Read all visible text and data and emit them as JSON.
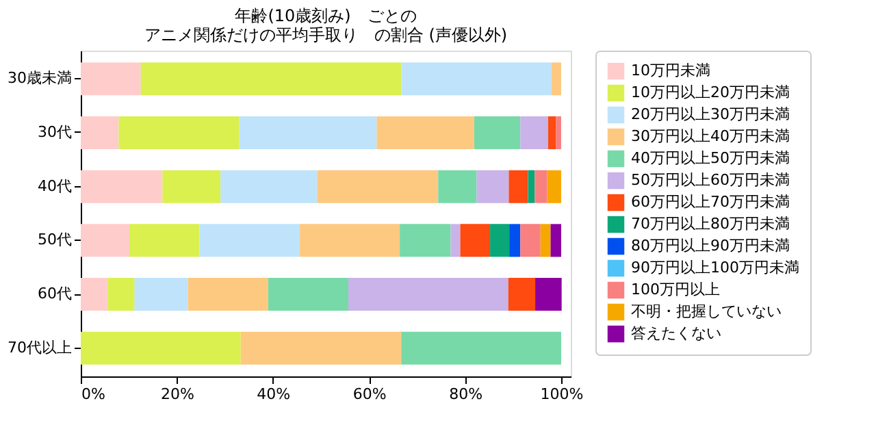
{
  "chart_data": {
    "type": "bar",
    "orientation": "horizontal",
    "stacked": true,
    "title": [
      "年齢(10歳刻み)　ごとの",
      "アニメ関係だけの平均手取り　の割合 (声優以外)"
    ],
    "categories": [
      "30歳未満",
      "30代",
      "40代",
      "50代",
      "60代",
      "70代以上"
    ],
    "xlim": [
      0,
      102
    ],
    "xticks": [
      {
        "value": 0,
        "label": "0%"
      },
      {
        "value": 20,
        "label": "20%"
      },
      {
        "value": 40,
        "label": "40%"
      },
      {
        "value": 60,
        "label": "60%"
      },
      {
        "value": 80,
        "label": "80%"
      },
      {
        "value": 100,
        "label": "100%"
      }
    ],
    "grid": false,
    "legend": "right",
    "series": [
      {
        "name": "10万円未満",
        "color": "#ffcccc",
        "values": [
          12.5,
          7.9,
          17.0,
          10.1,
          5.6,
          0
        ]
      },
      {
        "name": "10万円以上20万円未満",
        "color": "#d9f04f",
        "values": [
          54.2,
          25.1,
          12.1,
          14.6,
          5.6,
          33.3
        ]
      },
      {
        "name": "20万円以上30万円未満",
        "color": "#bfe3fb",
        "values": [
          31.3,
          28.6,
          20.1,
          20.9,
          11.1,
          0
        ]
      },
      {
        "name": "30万円以上40万円未満",
        "color": "#fdc981",
        "values": [
          2.0,
          20.3,
          25.2,
          20.8,
          16.7,
          33.4
        ]
      },
      {
        "name": "40万円以上50万円未満",
        "color": "#78d9a8",
        "values": [
          0,
          9.6,
          8.0,
          10.6,
          16.7,
          33.3
        ]
      },
      {
        "name": "50万円以上60万円未満",
        "color": "#c9b3e8",
        "values": [
          0,
          5.8,
          6.7,
          2.0,
          33.3,
          0
        ]
      },
      {
        "name": "60万円以上70万円未満",
        "color": "#ff4a10",
        "values": [
          0,
          1.6,
          4.0,
          6.2,
          5.6,
          0
        ]
      },
      {
        "name": "70万円以上80万円未満",
        "color": "#0aa878",
        "values": [
          0,
          0,
          1.4,
          4.0,
          0,
          0
        ]
      },
      {
        "name": "80万円以上90万円未満",
        "color": "#0050f0",
        "values": [
          0,
          0,
          0,
          2.3,
          0,
          0
        ]
      },
      {
        "name": "90万円以上100万円未満",
        "color": "#4fc3f7",
        "values": [
          0,
          0,
          0,
          0,
          0,
          0
        ]
      },
      {
        "name": "100万円以上",
        "color": "#f88080",
        "values": [
          0,
          1.1,
          2.6,
          4.2,
          0,
          0
        ]
      },
      {
        "name": "不明・把握していない",
        "color": "#f7a800",
        "values": [
          0,
          0,
          2.9,
          2.1,
          0,
          0
        ]
      },
      {
        "name": "答えたくない",
        "color": "#8b00a0",
        "values": [
          0,
          0,
          0,
          2.2,
          5.5,
          0
        ]
      }
    ]
  }
}
